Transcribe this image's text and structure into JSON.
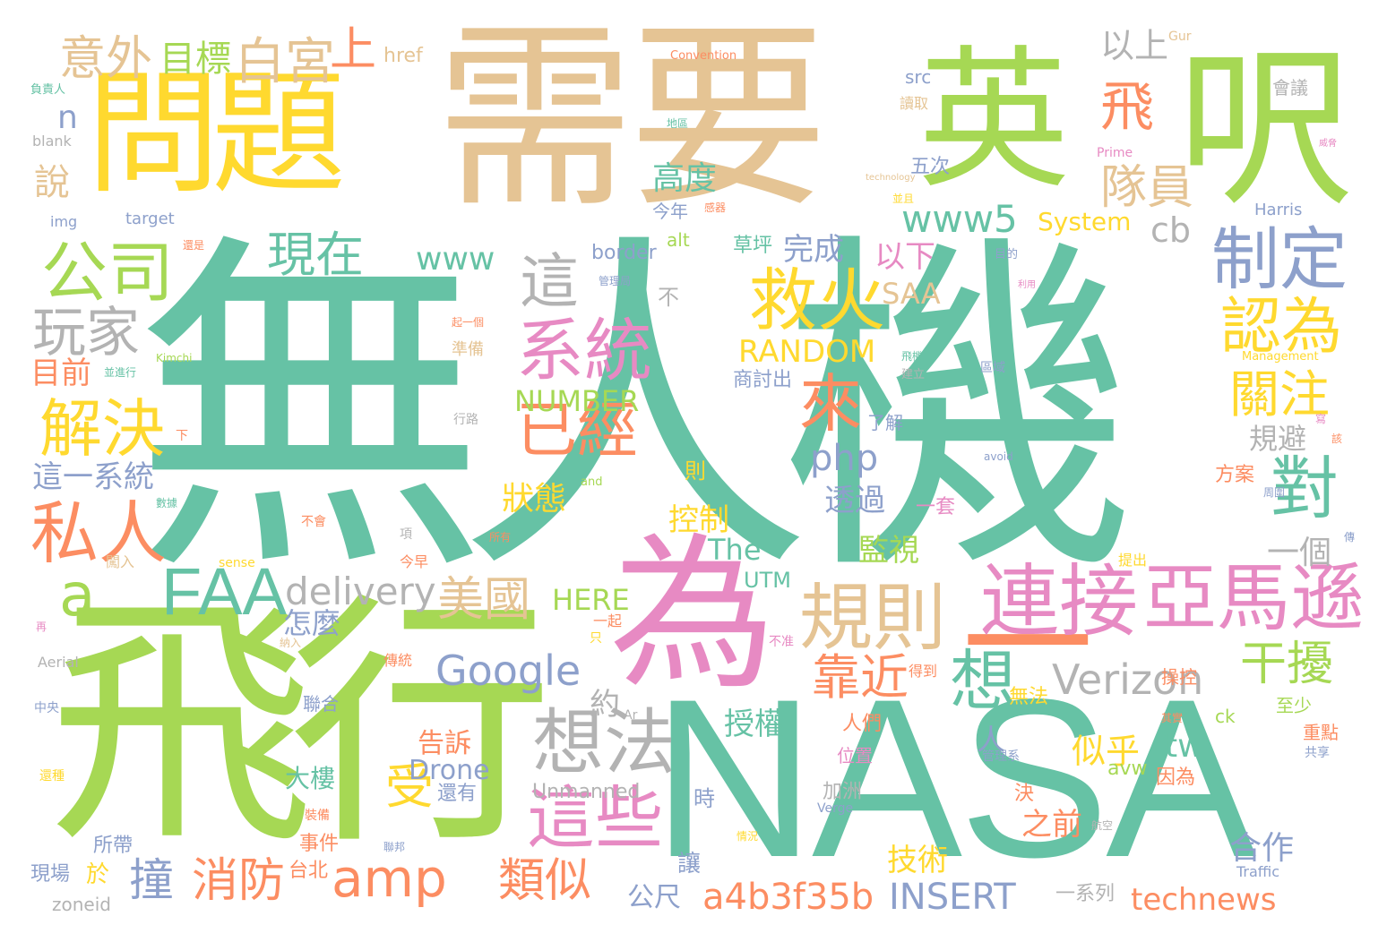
{
  "colors": {
    "teal": "#66c2a5",
    "salmon": "#fc8d62",
    "blue": "#8da0cb",
    "pink": "#e78ac3",
    "green": "#a6d854",
    "yellow": "#ffd92f",
    "tan": "#e5c494",
    "gray": "#b3b3b3"
  },
  "words": [
    {
      "t": "無人機",
      "c": "#66c2a5"
    },
    {
      "t": "需要",
      "c": "#e5c494"
    },
    {
      "t": "問題",
      "c": "#ffd92f"
    },
    {
      "t": "英",
      "c": "#a6d854"
    },
    {
      "t": "呎",
      "c": "#a6d854"
    },
    {
      "t": "飛行",
      "c": "#a6d854"
    },
    {
      "t": "NASA",
      "c": "#66c2a5"
    },
    {
      "t": "為",
      "c": "#e78ac3"
    },
    {
      "t": "一",
      "c": "#fc8d62"
    },
    {
      "t": "公司",
      "c": "#a6d854"
    },
    {
      "t": "玩家",
      "c": "#b3b3b3"
    },
    {
      "t": "解決",
      "c": "#ffd92f"
    },
    {
      "t": "私人",
      "c": "#fc8d62"
    },
    {
      "t": "a",
      "c": "#a6d854"
    },
    {
      "t": "FAA",
      "c": "#66c2a5"
    },
    {
      "t": "delivery",
      "c": "#b3b3b3"
    },
    {
      "t": "系統",
      "c": "#e78ac3"
    },
    {
      "t": "救火",
      "c": "#ffd92f"
    },
    {
      "t": "這",
      "c": "#b3b3b3"
    },
    {
      "t": "來",
      "c": "#fc8d62"
    },
    {
      "t": "規則",
      "c": "#e5c494"
    },
    {
      "t": "連接",
      "c": "#e78ac3"
    },
    {
      "t": "亞馬遜",
      "c": "#e78ac3"
    },
    {
      "t": "制定",
      "c": "#8da0cb"
    },
    {
      "t": "認為",
      "c": "#ffd92f"
    },
    {
      "t": "關注",
      "c": "#ffd92f"
    },
    {
      "t": "對",
      "c": "#66c2a5"
    },
    {
      "t": "干擾",
      "c": "#a6d854"
    },
    {
      "t": "Verizon",
      "c": "#b3b3b3"
    },
    {
      "t": "Google",
      "c": "#8da0cb"
    },
    {
      "t": "想法",
      "c": "#b3b3b3"
    },
    {
      "t": "這些",
      "c": "#e78ac3"
    },
    {
      "t": "amp",
      "c": "#fc8d62"
    },
    {
      "t": "www5",
      "c": "#66c2a5"
    },
    {
      "t": "www",
      "c": "#66c2a5"
    },
    {
      "t": "現在",
      "c": "#66c2a5"
    },
    {
      "t": "白宮",
      "c": "#e5c494"
    },
    {
      "t": "上",
      "c": "#fc8d62"
    },
    {
      "t": "意外",
      "c": "#e5c494"
    },
    {
      "t": "目標",
      "c": "#a6d854"
    },
    {
      "t": "飛",
      "c": "#fc8d62"
    },
    {
      "t": "隊員",
      "c": "#e5c494"
    },
    {
      "t": "以上",
      "c": "#b3b3b3"
    },
    {
      "t": "cb",
      "c": "#b3b3b3"
    },
    {
      "t": "已經",
      "c": "#fc8d62"
    },
    {
      "t": "RANDOM",
      "c": "#ffd92f"
    },
    {
      "t": "NUMBER",
      "c": "#a6d854"
    },
    {
      "t": "美國",
      "c": "#e5c494"
    },
    {
      "t": "靠近",
      "c": "#fc8d62"
    },
    {
      "t": "想",
      "c": "#66c2a5"
    },
    {
      "t": "受",
      "c": "#ffd92f"
    },
    {
      "t": "撞",
      "c": "#8da0cb"
    },
    {
      "t": "消防",
      "c": "#fc8d62"
    },
    {
      "t": "類似",
      "c": "#fc8d62"
    },
    {
      "t": "a4b3f35b",
      "c": "#fc8d62"
    },
    {
      "t": "INSERT",
      "c": "#8da0cb"
    },
    {
      "t": "technews",
      "c": "#fc8d62"
    },
    {
      "t": "php",
      "c": "#8da0cb"
    },
    {
      "t": "高度",
      "c": "#66c2a5"
    },
    {
      "t": "完成",
      "c": "#8da0cb"
    },
    {
      "t": "SAA",
      "c": "#e5c494"
    },
    {
      "t": "以下",
      "c": "#e78ac3"
    },
    {
      "t": "System",
      "c": "#ffd92f"
    },
    {
      "t": "n",
      "c": "#8da0cb"
    },
    {
      "t": "說",
      "c": "#e5c494"
    },
    {
      "t": "目前",
      "c": "#fc8d62"
    },
    {
      "t": "這一系統",
      "c": "#8da0cb"
    },
    {
      "t": "狀態",
      "c": "#ffd92f"
    },
    {
      "t": "透過",
      "c": "#8da0cb"
    },
    {
      "t": "控制",
      "c": "#ffd92f"
    },
    {
      "t": "The",
      "c": "#66c2a5"
    },
    {
      "t": "監視",
      "c": "#a6d854"
    },
    {
      "t": "HERE",
      "c": "#a6d854"
    },
    {
      "t": "怎麼",
      "c": "#8da0cb"
    },
    {
      "t": "告訴",
      "c": "#fc8d62"
    },
    {
      "t": "Drone",
      "c": "#8da0cb"
    },
    {
      "t": "大樓",
      "c": "#66c2a5"
    },
    {
      "t": "授權",
      "c": "#66c2a5"
    },
    {
      "t": "約",
      "c": "#b3b3b3"
    },
    {
      "t": "tw",
      "c": "#66c2a5"
    },
    {
      "t": "似乎",
      "c": "#ffd92f"
    },
    {
      "t": "人",
      "c": "#8da0cb"
    },
    {
      "t": "規避",
      "c": "#b3b3b3"
    },
    {
      "t": "一個",
      "c": "#b3b3b3"
    },
    {
      "t": "合作",
      "c": "#8da0cb"
    },
    {
      "t": "技術",
      "c": "#ffd92f"
    },
    {
      "t": "之前",
      "c": "#fc8d62"
    },
    {
      "t": "公尺",
      "c": "#8da0cb"
    },
    {
      "t": "於",
      "c": "#ffd92f"
    },
    {
      "t": "讓",
      "c": "#8da0cb"
    },
    {
      "t": "台北",
      "c": "#fc8d62"
    },
    {
      "t": "事件",
      "c": "#fc8d62"
    },
    {
      "t": "現場",
      "c": "#8da0cb"
    },
    {
      "t": "所帶",
      "c": "#8da0cb"
    },
    {
      "t": "zoneid",
      "c": "#b3b3b3"
    },
    {
      "t": "Unmanned",
      "c": "#b3b3b3"
    },
    {
      "t": "還有",
      "c": "#8da0cb"
    },
    {
      "t": "加洲",
      "c": "#b3b3b3"
    },
    {
      "t": "時",
      "c": "#8da0cb"
    },
    {
      "t": "一系列",
      "c": "#b3b3b3"
    },
    {
      "t": "決",
      "c": "#fc8d62"
    },
    {
      "t": "avw",
      "c": "#a6d854"
    },
    {
      "t": "因為",
      "c": "#fc8d62"
    },
    {
      "t": "至少",
      "c": "#a6d854"
    },
    {
      "t": "UTM",
      "c": "#66c2a5"
    },
    {
      "t": "無法",
      "c": "#ffd92f"
    },
    {
      "t": "人們",
      "c": "#fc8d62"
    },
    {
      "t": "位置",
      "c": "#e78ac3"
    },
    {
      "t": "操控",
      "c": "#fc8d62"
    },
    {
      "t": "重點",
      "c": "#fc8d62"
    },
    {
      "t": "ck",
      "c": "#a6d854"
    },
    {
      "t": "方案",
      "c": "#fc8d62"
    },
    {
      "t": "則",
      "c": "#ffd92f"
    },
    {
      "t": "一套",
      "c": "#e78ac3"
    },
    {
      "t": "了解",
      "c": "#8da0cb"
    },
    {
      "t": "商討出",
      "c": "#8da0cb"
    },
    {
      "t": "不",
      "c": "#b3b3b3"
    },
    {
      "t": "草坪",
      "c": "#66c2a5"
    },
    {
      "t": "border",
      "c": "#8da0cb"
    },
    {
      "t": "alt",
      "c": "#a6d854"
    },
    {
      "t": "今年",
      "c": "#8da0cb"
    },
    {
      "t": "五次",
      "c": "#8da0cb"
    },
    {
      "t": "src",
      "c": "#8da0cb"
    },
    {
      "t": "href",
      "c": "#e5c494"
    },
    {
      "t": "Convention",
      "c": "#fc8d62"
    },
    {
      "t": "Gur",
      "c": "#e5c494"
    },
    {
      "t": "會議",
      "c": "#b3b3b3"
    },
    {
      "t": "讀取",
      "c": "#e5c494"
    },
    {
      "t": "Prime",
      "c": "#e78ac3"
    },
    {
      "t": "Harris",
      "c": "#8da0cb"
    },
    {
      "t": "target",
      "c": "#8da0cb"
    },
    {
      "t": "img",
      "c": "#8da0cb"
    },
    {
      "t": "blank",
      "c": "#b3b3b3"
    },
    {
      "t": "負責人",
      "c": "#66c2a5"
    },
    {
      "t": "and",
      "c": "#a6d854"
    },
    {
      "t": "sense",
      "c": "#ffd92f"
    },
    {
      "t": "Aerial",
      "c": "#b3b3b3"
    },
    {
      "t": "中央",
      "c": "#8da0cb"
    },
    {
      "t": "聯合",
      "c": "#8da0cb"
    },
    {
      "t": "Kimchi",
      "c": "#a6d854"
    },
    {
      "t": "Management",
      "c": "#ffd92f"
    },
    {
      "t": "Verge",
      "c": "#8da0cb"
    },
    {
      "t": "Traffic",
      "c": "#8da0cb"
    },
    {
      "t": "technology",
      "c": "#e5c494"
    },
    {
      "t": "avoid",
      "c": "#8da0cb"
    },
    {
      "t": "Ar",
      "c": "#b3b3b3"
    },
    {
      "t": "數據",
      "c": "#66c2a5"
    },
    {
      "t": "準備",
      "c": "#e5c494"
    },
    {
      "t": "區域",
      "c": "#8da0cb"
    },
    {
      "t": "行路",
      "c": "#b3b3b3"
    },
    {
      "t": "下",
      "c": "#fc8d62"
    },
    {
      "t": "不會",
      "c": "#fc8d62"
    },
    {
      "t": "所有",
      "c": "#fc8d62"
    },
    {
      "t": "今早",
      "c": "#fc8d62"
    },
    {
      "t": "項",
      "c": "#b3b3b3"
    },
    {
      "t": "闖入",
      "c": "#e5c494"
    },
    {
      "t": "傳統",
      "c": "#fc8d62"
    },
    {
      "t": "納入",
      "c": "#e5c494"
    },
    {
      "t": "得到",
      "c": "#fc8d62"
    },
    {
      "t": "不准",
      "c": "#e78ac3"
    },
    {
      "t": "提出",
      "c": "#ffd92f"
    },
    {
      "t": "其實",
      "c": "#fc8d62"
    },
    {
      "t": "共享",
      "c": "#8da0cb"
    },
    {
      "t": "管理系",
      "c": "#8da0cb"
    },
    {
      "t": "航空",
      "c": "#b3b3b3"
    },
    {
      "t": "還種",
      "c": "#ffd92f"
    },
    {
      "t": "聯邦",
      "c": "#8da0cb"
    },
    {
      "t": "建立",
      "c": "#b3b3b3"
    },
    {
      "t": "飛機",
      "c": "#66c2a5"
    },
    {
      "t": "周圍",
      "c": "#8da0cb"
    },
    {
      "t": "一起",
      "c": "#fc8d62"
    },
    {
      "t": "只",
      "c": "#ffd92f"
    },
    {
      "t": "並進行",
      "c": "#66c2a5"
    },
    {
      "t": "地區",
      "c": "#66c2a5"
    },
    {
      "t": "起一個",
      "c": "#fc8d62"
    },
    {
      "t": "管理局",
      "c": "#8da0cb"
    },
    {
      "t": "目的",
      "c": "#8da0cb"
    },
    {
      "t": "利用",
      "c": "#e78ac3"
    },
    {
      "t": "並且",
      "c": "#ffd92f"
    },
    {
      "t": "威脅",
      "c": "#e78ac3"
    },
    {
      "t": "感器",
      "c": "#fc8d62"
    },
    {
      "t": "還是",
      "c": "#fc8d62"
    },
    {
      "t": "情況",
      "c": "#ffd92f"
    },
    {
      "t": "裝備",
      "c": "#fc8d62"
    },
    {
      "t": "寫",
      "c": "#e78ac3"
    },
    {
      "t": "再",
      "c": "#e78ac3"
    },
    {
      "t": "該",
      "c": "#fc8d62"
    },
    {
      "t": "傳",
      "c": "#8da0cb"
    }
  ]
}
